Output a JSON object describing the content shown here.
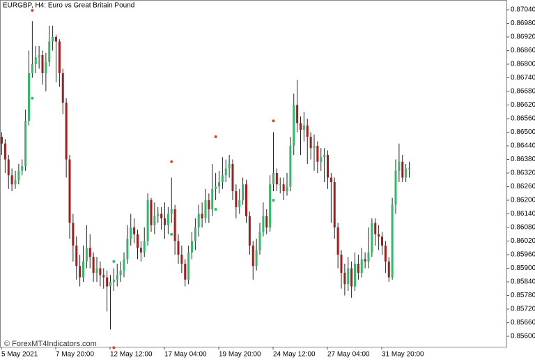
{
  "chart_data": {
    "type": "candlestick",
    "title": "EURGBP, H4:  Euro vs Great Britain Pound",
    "watermark": "© ForexMT4Indicators.com",
    "bull_color": "#36b86b",
    "bear_color": "#a51c1c",
    "wick_color": "#222222",
    "ylim": [
      0.85554,
      0.87083
    ],
    "yticks": [
      {
        "value": 0.8704,
        "label": "0.87040"
      },
      {
        "value": 0.8698,
        "label": "0.86980"
      },
      {
        "value": 0.8692,
        "label": "0.86920"
      },
      {
        "value": 0.8686,
        "label": "0.86860"
      },
      {
        "value": 0.868,
        "label": "0.86800"
      },
      {
        "value": 0.8674,
        "label": "0.86740"
      },
      {
        "value": 0.8668,
        "label": "0.86680"
      },
      {
        "value": 0.8662,
        "label": "0.86620"
      },
      {
        "value": 0.8656,
        "label": "0.86560"
      },
      {
        "value": 0.865,
        "label": "0.86500"
      },
      {
        "value": 0.8644,
        "label": "0.86440"
      },
      {
        "value": 0.8638,
        "label": "0.86380"
      },
      {
        "value": 0.8632,
        "label": "0.86320"
      },
      {
        "value": 0.8626,
        "label": "0.86260"
      },
      {
        "value": 0.862,
        "label": "0.86200"
      },
      {
        "value": 0.8614,
        "label": "0.86140"
      },
      {
        "value": 0.8608,
        "label": "0.86080"
      },
      {
        "value": 0.8602,
        "label": "0.86020"
      },
      {
        "value": 0.8596,
        "label": "0.85960"
      },
      {
        "value": 0.859,
        "label": "0.85900"
      },
      {
        "value": 0.8584,
        "label": "0.85840"
      },
      {
        "value": 0.8578,
        "label": "0.85780"
      },
      {
        "value": 0.8572,
        "label": "0.85720"
      },
      {
        "value": 0.8566,
        "label": "0.85660"
      },
      {
        "value": 0.856,
        "label": "0.85600"
      }
    ],
    "xticks": [
      {
        "value": 0,
        "label": "5 May 2021"
      },
      {
        "value": 16,
        "label": "7 May 20:00"
      },
      {
        "value": 32,
        "label": "12 May 12:00"
      },
      {
        "value": 48,
        "label": "17 May 04:00"
      },
      {
        "value": 64,
        "label": "19 May 20:00"
      },
      {
        "value": 80,
        "label": "24 May 12:00"
      },
      {
        "value": 96,
        "label": "27 May 04:00"
      },
      {
        "value": 112,
        "label": "31 May 20:00"
      }
    ],
    "open": [
      0.8648,
      0.8645,
      0.8638,
      0.8631,
      0.8627,
      0.8629,
      0.8633,
      0.8635,
      0.8655,
      0.8676,
      0.868,
      0.8683,
      0.8684,
      0.8676,
      0.8681,
      0.869,
      0.8692,
      0.869,
      0.8676,
      0.8663,
      0.8638,
      0.861,
      0.86,
      0.8591,
      0.8586,
      0.8593,
      0.8599,
      0.8595,
      0.8588,
      0.859,
      0.8587,
      0.8586,
      0.8582,
      0.8584,
      0.8585,
      0.8587,
      0.8589,
      0.8594,
      0.8603,
      0.8608,
      0.8605,
      0.8599,
      0.8597,
      0.8602,
      0.862,
      0.8609,
      0.8613,
      0.8614,
      0.8612,
      0.8609,
      0.8614,
      0.8616,
      0.8602,
      0.8596,
      0.8592,
      0.8585,
      0.8597,
      0.8602,
      0.8608,
      0.8614,
      0.8612,
      0.862,
      0.8616,
      0.8625,
      0.8626,
      0.8628,
      0.8631,
      0.8634,
      0.8636,
      0.8624,
      0.8617,
      0.862,
      0.8627,
      0.8613,
      0.86,
      0.8591,
      0.8598,
      0.8606,
      0.8613,
      0.8608,
      0.8627,
      0.8632,
      0.8627,
      0.8627,
      0.8624,
      0.8626,
      0.8644,
      0.8662,
      0.8654,
      0.8651,
      0.8653,
      0.8648,
      0.8643,
      0.8644,
      0.8637,
      0.8639,
      0.864,
      0.863,
      0.8628,
      0.8608,
      0.8596,
      0.8588,
      0.8583,
      0.859,
      0.8582,
      0.8592,
      0.8588,
      0.8594,
      0.8593,
      0.8597,
      0.861,
      0.8605,
      0.8604,
      0.86,
      0.8593,
      0.8586,
      0.8618,
      0.8633,
      0.8637,
      0.863,
      0.8634
    ],
    "high": [
      0.865,
      0.8647,
      0.864,
      0.8634,
      0.8633,
      0.8636,
      0.8638,
      0.866,
      0.8686,
      0.8699,
      0.8688,
      0.8688,
      0.8686,
      0.8685,
      0.8697,
      0.8697,
      0.8693,
      0.8691,
      0.8678,
      0.8665,
      0.864,
      0.8614,
      0.8604,
      0.8596,
      0.86,
      0.8609,
      0.8605,
      0.8597,
      0.8595,
      0.8593,
      0.859,
      0.8589,
      0.8587,
      0.859,
      0.8592,
      0.8593,
      0.8597,
      0.8609,
      0.8614,
      0.8612,
      0.8607,
      0.8602,
      0.8608,
      0.8623,
      0.8621,
      0.8619,
      0.8617,
      0.8617,
      0.8619,
      0.8617,
      0.863,
      0.8618,
      0.8605,
      0.86,
      0.8594,
      0.86,
      0.8606,
      0.8612,
      0.8618,
      0.8619,
      0.8625,
      0.8623,
      0.8636,
      0.8632,
      0.8633,
      0.8639,
      0.8638,
      0.864,
      0.8638,
      0.8627,
      0.8625,
      0.863,
      0.8629,
      0.8615,
      0.8602,
      0.8603,
      0.861,
      0.8619,
      0.8616,
      0.8631,
      0.865,
      0.8634,
      0.863,
      0.863,
      0.8632,
      0.8648,
      0.8667,
      0.8673,
      0.8657,
      0.8659,
      0.8656,
      0.865,
      0.8649,
      0.8646,
      0.8643,
      0.8643,
      0.8642,
      0.8632,
      0.863,
      0.861,
      0.8598,
      0.8592,
      0.8595,
      0.8593,
      0.8597,
      0.8596,
      0.8599,
      0.8597,
      0.8608,
      0.8612,
      0.8612,
      0.8609,
      0.8606,
      0.8602,
      0.8595,
      0.8621,
      0.8638,
      0.8645,
      0.864,
      0.8636,
      0.8637
    ],
    "low": [
      0.864,
      0.8632,
      0.8625,
      0.8624,
      0.8625,
      0.8627,
      0.8631,
      0.8633,
      0.8653,
      0.8674,
      0.8676,
      0.8678,
      0.8671,
      0.8668,
      0.8679,
      0.8686,
      0.8672,
      0.867,
      0.8658,
      0.863,
      0.8603,
      0.8593,
      0.8585,
      0.8582,
      0.8584,
      0.859,
      0.859,
      0.8584,
      0.8584,
      0.8582,
      0.8581,
      0.8571,
      0.8563,
      0.858,
      0.8582,
      0.8584,
      0.8586,
      0.8592,
      0.86,
      0.8601,
      0.8594,
      0.8593,
      0.8595,
      0.86,
      0.8606,
      0.8605,
      0.861,
      0.8607,
      0.8603,
      0.8605,
      0.861,
      0.8596,
      0.8592,
      0.8588,
      0.8582,
      0.8583,
      0.8594,
      0.8598,
      0.8604,
      0.8608,
      0.861,
      0.861,
      0.8613,
      0.862,
      0.8623,
      0.8625,
      0.8628,
      0.863,
      0.862,
      0.8612,
      0.8614,
      0.8618,
      0.861,
      0.8596,
      0.8585,
      0.8589,
      0.8596,
      0.8604,
      0.8605,
      0.8606,
      0.8624,
      0.8624,
      0.8623,
      0.862,
      0.8622,
      0.8624,
      0.864,
      0.865,
      0.864,
      0.8646,
      0.8636,
      0.8638,
      0.8633,
      0.8632,
      0.8633,
      0.8628,
      0.8625,
      0.861,
      0.8603,
      0.859,
      0.8581,
      0.8578,
      0.858,
      0.8577,
      0.858,
      0.8585,
      0.8586,
      0.859,
      0.859,
      0.8595,
      0.86,
      0.8598,
      0.8596,
      0.8588,
      0.8584,
      0.8585,
      0.8614,
      0.8628,
      0.8628,
      0.8628,
      0.863
    ],
    "close": [
      0.8645,
      0.8638,
      0.8631,
      0.8627,
      0.8629,
      0.8633,
      0.8635,
      0.8655,
      0.8676,
      0.868,
      0.8683,
      0.8684,
      0.8676,
      0.8681,
      0.869,
      0.8692,
      0.869,
      0.8676,
      0.8663,
      0.8638,
      0.861,
      0.86,
      0.8591,
      0.8586,
      0.8593,
      0.8599,
      0.8595,
      0.8588,
      0.859,
      0.8587,
      0.8586,
      0.8582,
      0.8584,
      0.8585,
      0.8587,
      0.8589,
      0.8594,
      0.8603,
      0.8608,
      0.8605,
      0.8599,
      0.8597,
      0.8602,
      0.862,
      0.8609,
      0.8613,
      0.8614,
      0.8612,
      0.8609,
      0.8614,
      0.8616,
      0.8602,
      0.8596,
      0.8592,
      0.8585,
      0.8597,
      0.8602,
      0.8608,
      0.8614,
      0.8612,
      0.862,
      0.8616,
      0.8625,
      0.8626,
      0.8628,
      0.8631,
      0.8634,
      0.8636,
      0.8624,
      0.8617,
      0.862,
      0.8627,
      0.8613,
      0.86,
      0.8591,
      0.8598,
      0.8606,
      0.8613,
      0.8608,
      0.8627,
      0.8632,
      0.8627,
      0.8627,
      0.8624,
      0.8626,
      0.8644,
      0.8662,
      0.8654,
      0.8651,
      0.8653,
      0.8648,
      0.8643,
      0.8644,
      0.8637,
      0.8639,
      0.864,
      0.863,
      0.8628,
      0.8608,
      0.8596,
      0.8588,
      0.8583,
      0.859,
      0.8582,
      0.8592,
      0.8588,
      0.8594,
      0.8593,
      0.8597,
      0.861,
      0.8605,
      0.8604,
      0.86,
      0.8593,
      0.8586,
      0.8618,
      0.8633,
      0.8637,
      0.863,
      0.8634,
      0.8634
    ],
    "signals": [
      {
        "x": 9,
        "value": 0.87037,
        "color": "#e8402a"
      },
      {
        "x": 9,
        "value": 0.8665,
        "color": "#36b86b"
      },
      {
        "x": 33,
        "value": 0.8555,
        "color": "#e8402a"
      },
      {
        "x": 33,
        "value": 0.8593,
        "color": "#36b86b"
      },
      {
        "x": 50,
        "value": 0.8637,
        "color": "#e8402a"
      },
      {
        "x": 50,
        "value": 0.8605,
        "color": "#36b86b"
      },
      {
        "x": 63,
        "value": 0.8648,
        "color": "#e8402a"
      },
      {
        "x": 63,
        "value": 0.8616,
        "color": "#36b86b"
      },
      {
        "x": 80,
        "value": 0.8655,
        "color": "#e8402a"
      },
      {
        "x": 80,
        "value": 0.862,
        "color": "#36b86b"
      }
    ]
  }
}
